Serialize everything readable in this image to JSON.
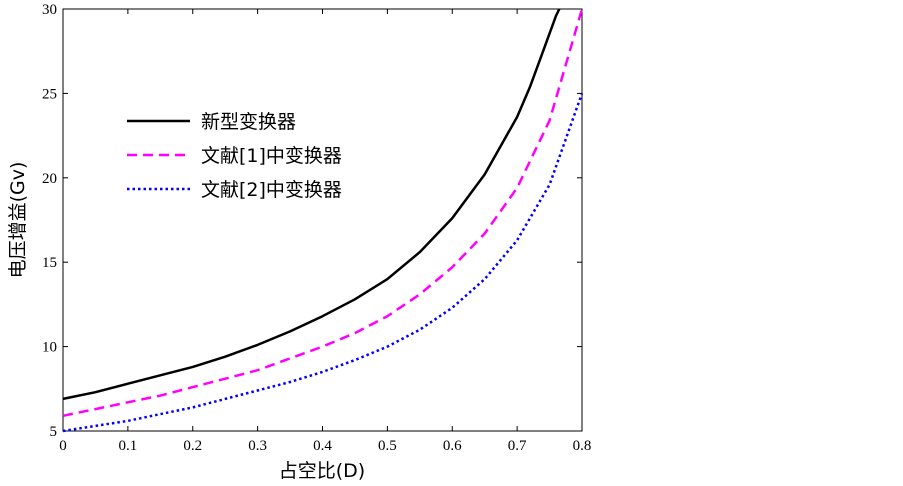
{
  "chart_data": {
    "type": "line",
    "title": "",
    "xlabel": "占空比(D)",
    "ylabel": "电压增益(Gv)",
    "xlim": [
      0,
      0.8
    ],
    "ylim": [
      5,
      30
    ],
    "x_ticks": [
      "0",
      "0.1",
      "0.2",
      "0.3",
      "0.4",
      "0.5",
      "0.6",
      "0.7",
      "0.8"
    ],
    "y_ticks": [
      "5",
      "10",
      "15",
      "20",
      "25",
      "30"
    ],
    "grid": false,
    "legend_position": "top-left",
    "series": [
      {
        "name": "新型变换器",
        "color": "#000000",
        "style": "solid",
        "x": [
          0,
          0.05,
          0.1,
          0.15,
          0.2,
          0.25,
          0.3,
          0.35,
          0.4,
          0.45,
          0.5,
          0.55,
          0.6,
          0.65,
          0.7,
          0.72,
          0.74,
          0.76,
          0.765
        ],
        "y": [
          6.9,
          7.3,
          7.8,
          8.3,
          8.8,
          9.4,
          10.1,
          10.9,
          11.8,
          12.8,
          14.0,
          15.6,
          17.6,
          20.2,
          23.6,
          25.4,
          27.5,
          29.6,
          30.0
        ]
      },
      {
        "name": "文献[1]中变换器",
        "color": "#ff00ff",
        "style": "dashed",
        "x": [
          0,
          0.05,
          0.1,
          0.15,
          0.2,
          0.25,
          0.3,
          0.35,
          0.4,
          0.45,
          0.5,
          0.55,
          0.6,
          0.65,
          0.7,
          0.75,
          0.8
        ],
        "y": [
          5.9,
          6.3,
          6.7,
          7.1,
          7.6,
          8.1,
          8.6,
          9.3,
          10.0,
          10.8,
          11.8,
          13.1,
          14.7,
          16.7,
          19.4,
          23.4,
          30.0
        ]
      },
      {
        "name": "文献[2]中变换器",
        "color": "#0000ff",
        "style": "dotted",
        "x": [
          0,
          0.05,
          0.1,
          0.15,
          0.2,
          0.25,
          0.3,
          0.35,
          0.4,
          0.45,
          0.5,
          0.55,
          0.6,
          0.65,
          0.7,
          0.75,
          0.8
        ],
        "y": [
          5.0,
          5.3,
          5.6,
          6.0,
          6.4,
          6.9,
          7.4,
          7.9,
          8.5,
          9.2,
          10.0,
          11.0,
          12.3,
          14.0,
          16.3,
          19.6,
          25.0
        ]
      }
    ]
  }
}
